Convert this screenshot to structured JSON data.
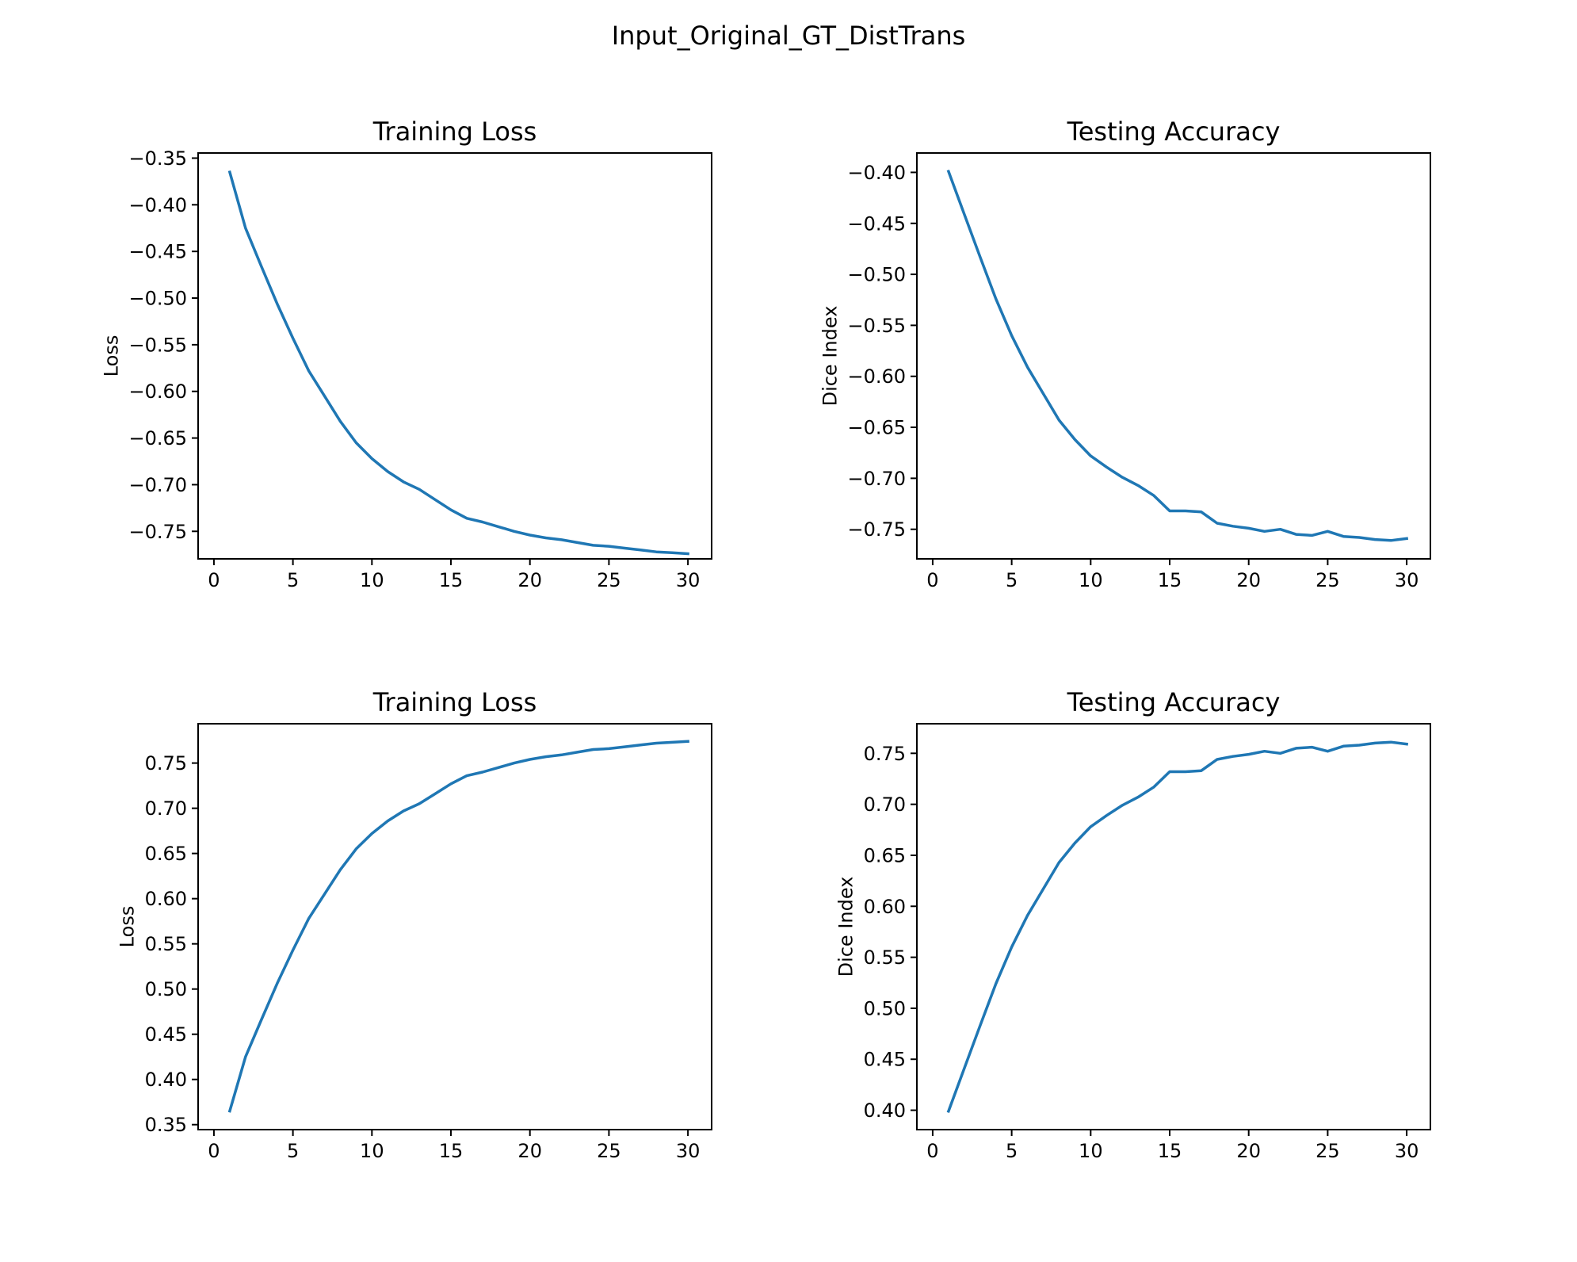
{
  "figure": {
    "title": "Input_Original_GT_DistTrans"
  },
  "chart_data": [
    {
      "type": "line",
      "title": "Training Loss",
      "xlabel": "",
      "ylabel": "Loss",
      "xlim": [
        -1.0,
        31.5
      ],
      "ylim": [
        -0.7795,
        -0.3445
      ],
      "xticks": [
        0,
        5,
        10,
        15,
        20,
        25,
        30
      ],
      "yticks": [
        -0.35,
        -0.4,
        -0.45,
        -0.5,
        -0.55,
        -0.6,
        -0.65,
        -0.7,
        -0.75
      ],
      "grid": false,
      "color": "#1f77b4",
      "series": [
        {
          "x": [
            1,
            2,
            3,
            4,
            5,
            6,
            7,
            8,
            9,
            10,
            11,
            12,
            13,
            14,
            15,
            16,
            17,
            18,
            19,
            20,
            21,
            22,
            23,
            24,
            25,
            26,
            27,
            28,
            29,
            30
          ],
          "values": [
            -0.365,
            -0.425,
            -0.466,
            -0.506,
            -0.543,
            -0.578,
            -0.605,
            -0.632,
            -0.655,
            -0.672,
            -0.686,
            -0.697,
            -0.705,
            -0.716,
            -0.727,
            -0.736,
            -0.74,
            -0.745,
            -0.75,
            -0.754,
            -0.757,
            -0.759,
            -0.762,
            -0.765,
            -0.766,
            -0.768,
            -0.77,
            -0.772,
            -0.773,
            -0.774
          ]
        }
      ]
    },
    {
      "type": "line",
      "title": "Testing Accuracy",
      "xlabel": "",
      "ylabel": "Dice Index",
      "xlim": [
        -1.0,
        31.5
      ],
      "ylim": [
        -0.779,
        -0.381
      ],
      "xticks": [
        0,
        5,
        10,
        15,
        20,
        25,
        30
      ],
      "yticks": [
        -0.4,
        -0.45,
        -0.5,
        -0.55,
        -0.6,
        -0.65,
        -0.7,
        -0.75
      ],
      "grid": false,
      "color": "#1f77b4",
      "series": [
        {
          "x": [
            1,
            2,
            3,
            4,
            5,
            6,
            7,
            8,
            9,
            10,
            11,
            12,
            13,
            14,
            15,
            16,
            17,
            18,
            19,
            20,
            21,
            22,
            23,
            24,
            25,
            26,
            27,
            28,
            29,
            30
          ],
          "values": [
            -0.399,
            -0.441,
            -0.483,
            -0.524,
            -0.56,
            -0.591,
            -0.617,
            -0.643,
            -0.662,
            -0.678,
            -0.689,
            -0.699,
            -0.707,
            -0.717,
            -0.732,
            -0.732,
            -0.733,
            -0.744,
            -0.747,
            -0.749,
            -0.752,
            -0.75,
            -0.755,
            -0.756,
            -0.752,
            -0.757,
            -0.758,
            -0.76,
            -0.761,
            -0.759
          ]
        }
      ]
    },
    {
      "type": "line",
      "title": "Training Loss",
      "xlabel": "",
      "ylabel": "Loss",
      "xlim": [
        -1.0,
        31.5
      ],
      "ylim": [
        0.3445,
        0.7935
      ],
      "xticks": [
        0,
        5,
        10,
        15,
        20,
        25,
        30
      ],
      "yticks": [
        0.35,
        0.4,
        0.45,
        0.5,
        0.55,
        0.6,
        0.65,
        0.7,
        0.75
      ],
      "grid": false,
      "color": "#1f77b4",
      "series": [
        {
          "x": [
            1,
            2,
            3,
            4,
            5,
            6,
            7,
            8,
            9,
            10,
            11,
            12,
            13,
            14,
            15,
            16,
            17,
            18,
            19,
            20,
            21,
            22,
            23,
            24,
            25,
            26,
            27,
            28,
            29,
            30
          ],
          "values": [
            0.365,
            0.425,
            0.466,
            0.506,
            0.543,
            0.578,
            0.605,
            0.632,
            0.655,
            0.672,
            0.686,
            0.697,
            0.705,
            0.716,
            0.727,
            0.736,
            0.74,
            0.745,
            0.75,
            0.754,
            0.757,
            0.759,
            0.762,
            0.765,
            0.766,
            0.768,
            0.77,
            0.772,
            0.773,
            0.774
          ]
        }
      ]
    },
    {
      "type": "line",
      "title": "Testing Accuracy",
      "xlabel": "",
      "ylabel": "Dice Index",
      "xlim": [
        -1.0,
        31.5
      ],
      "ylim": [
        0.381,
        0.779
      ],
      "xticks": [
        0,
        5,
        10,
        15,
        20,
        25,
        30
      ],
      "yticks": [
        0.4,
        0.45,
        0.5,
        0.55,
        0.6,
        0.65,
        0.7,
        0.75
      ],
      "grid": false,
      "color": "#1f77b4",
      "series": [
        {
          "x": [
            1,
            2,
            3,
            4,
            5,
            6,
            7,
            8,
            9,
            10,
            11,
            12,
            13,
            14,
            15,
            16,
            17,
            18,
            19,
            20,
            21,
            22,
            23,
            24,
            25,
            26,
            27,
            28,
            29,
            30
          ],
          "values": [
            0.399,
            0.441,
            0.483,
            0.524,
            0.56,
            0.591,
            0.617,
            0.643,
            0.662,
            0.678,
            0.689,
            0.699,
            0.707,
            0.717,
            0.732,
            0.732,
            0.733,
            0.744,
            0.747,
            0.749,
            0.752,
            0.75,
            0.755,
            0.756,
            0.752,
            0.757,
            0.758,
            0.76,
            0.761,
            0.759
          ]
        }
      ]
    }
  ]
}
